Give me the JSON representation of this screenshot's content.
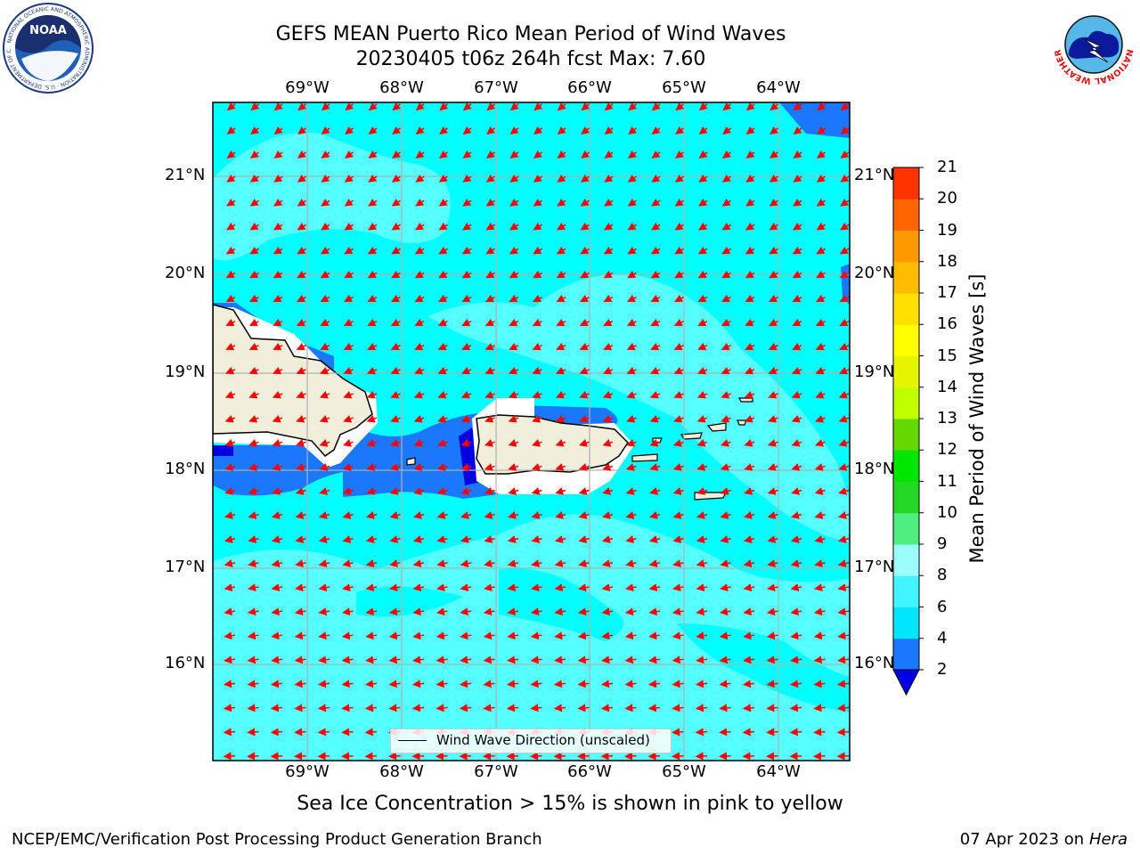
{
  "title": {
    "line1": "GEFS MEAN Puerto Rico Mean Period of Wind Waves",
    "line2": "20230405 t06z 264h fcst   Max: 7.60"
  },
  "logos": {
    "left": {
      "text": "NOAA",
      "icon": "noaa-logo-icon",
      "ring_text": "NATIONAL OCEANIC AND ATMOSPHERIC ADMINISTRATION · U.S. DEPARTMENT OF COMMERCE"
    },
    "right": {
      "icon": "nws-logo-icon",
      "ring_text": "NATIONAL WEATHER SERVICE"
    }
  },
  "axes": {
    "lon_labels": [
      "69°W",
      "68°W",
      "67°W",
      "66°W",
      "65°W",
      "64°W"
    ],
    "lon_values": [
      -69,
      -68,
      -67,
      -66,
      -65,
      -64
    ],
    "lat_labels": [
      "21°N",
      "20°N",
      "19°N",
      "18°N",
      "17°N",
      "16°N"
    ],
    "lat_values": [
      21,
      20,
      19,
      18,
      17,
      16
    ],
    "extent": {
      "lon_min": -70.0,
      "lon_max": -63.25,
      "lat_min": 15.0,
      "lat_max": 21.75
    },
    "grid": true
  },
  "colorbar": {
    "title": "Mean Period of Wind Waves [s]",
    "ticks": [
      "2",
      "4",
      "6",
      "8",
      "9",
      "10",
      "11",
      "12",
      "13",
      "14",
      "15",
      "16",
      "17",
      "18",
      "19",
      "20",
      "21"
    ],
    "colors": [
      "#1a78ff",
      "#00e6ff",
      "#42f4fd",
      "#9cfdfd",
      "#50ee80",
      "#26d826",
      "#00e600",
      "#64d800",
      "#bfff00",
      "#e5f400",
      "#ffff00",
      "#ffe000",
      "#ffbb00",
      "#ff9900",
      "#ff6600",
      "#ff3300"
    ],
    "under_color": "#0000e0"
  },
  "map_colors": {
    "ocean": "#00ffff",
    "light_band": "#55ffff",
    "blue": "#1a78ff",
    "dark_blue": "#0000e0",
    "land": "#efefdc",
    "white": "#ffffff",
    "arrow": "#ff0000"
  },
  "legend": {
    "label": "Wind Wave Direction (unscaled)"
  },
  "footer": {
    "note": "Sea Ice Concentration > 15% is shown in pink to yellow",
    "left": "NCEP/EMC/Verification Post Processing Product Generation Branch",
    "right_prefix": "07 Apr 2023 on ",
    "right_machine": "Hera"
  }
}
